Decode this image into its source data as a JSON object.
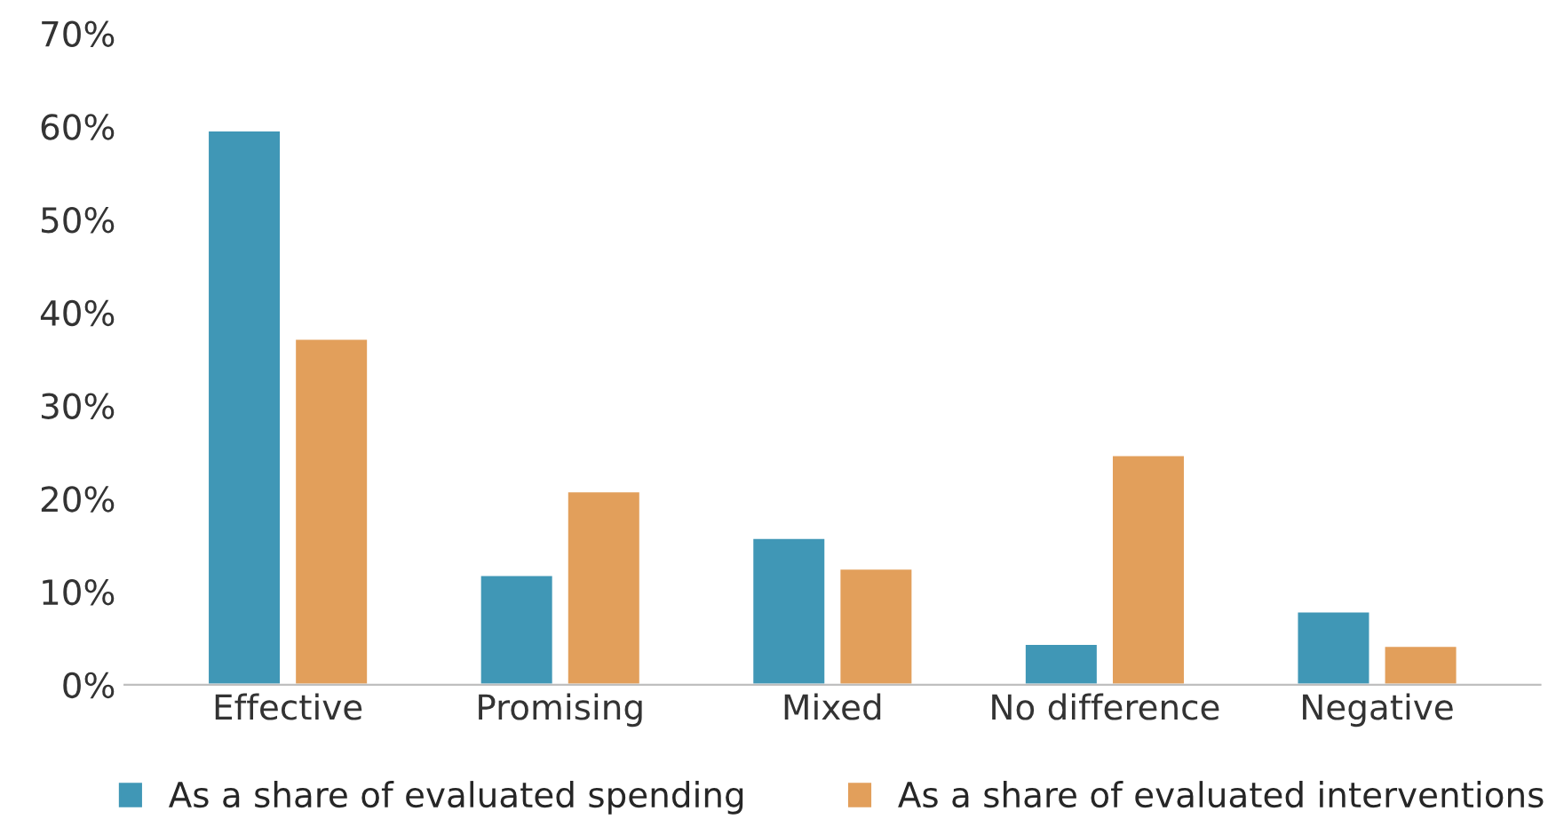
{
  "chart_data": {
    "type": "bar",
    "categories": [
      "Effective",
      "Promising",
      "Mixed",
      "No difference",
      "Negative"
    ],
    "series": [
      {
        "name": "As a share of evaluated spending",
        "color": "#4097b6",
        "values": [
          59.6,
          11.8,
          15.8,
          4.4,
          7.9
        ]
      },
      {
        "name": "As a share of evaluated interventions",
        "color": "#e29f5b",
        "values": [
          37.2,
          20.8,
          12.5,
          24.7,
          4.2
        ]
      }
    ],
    "ylim": [
      0,
      70
    ],
    "yticks": [
      {
        "value": 0,
        "label": "0%"
      },
      {
        "value": 10,
        "label": "10%"
      },
      {
        "value": 20,
        "label": "20%"
      },
      {
        "value": 30,
        "label": "30%"
      },
      {
        "value": 40,
        "label": "40%"
      },
      {
        "value": 50,
        "label": "50%"
      },
      {
        "value": 60,
        "label": "60%"
      },
      {
        "value": 70,
        "label": "70%"
      }
    ],
    "grid": false,
    "legend": "bottom"
  }
}
